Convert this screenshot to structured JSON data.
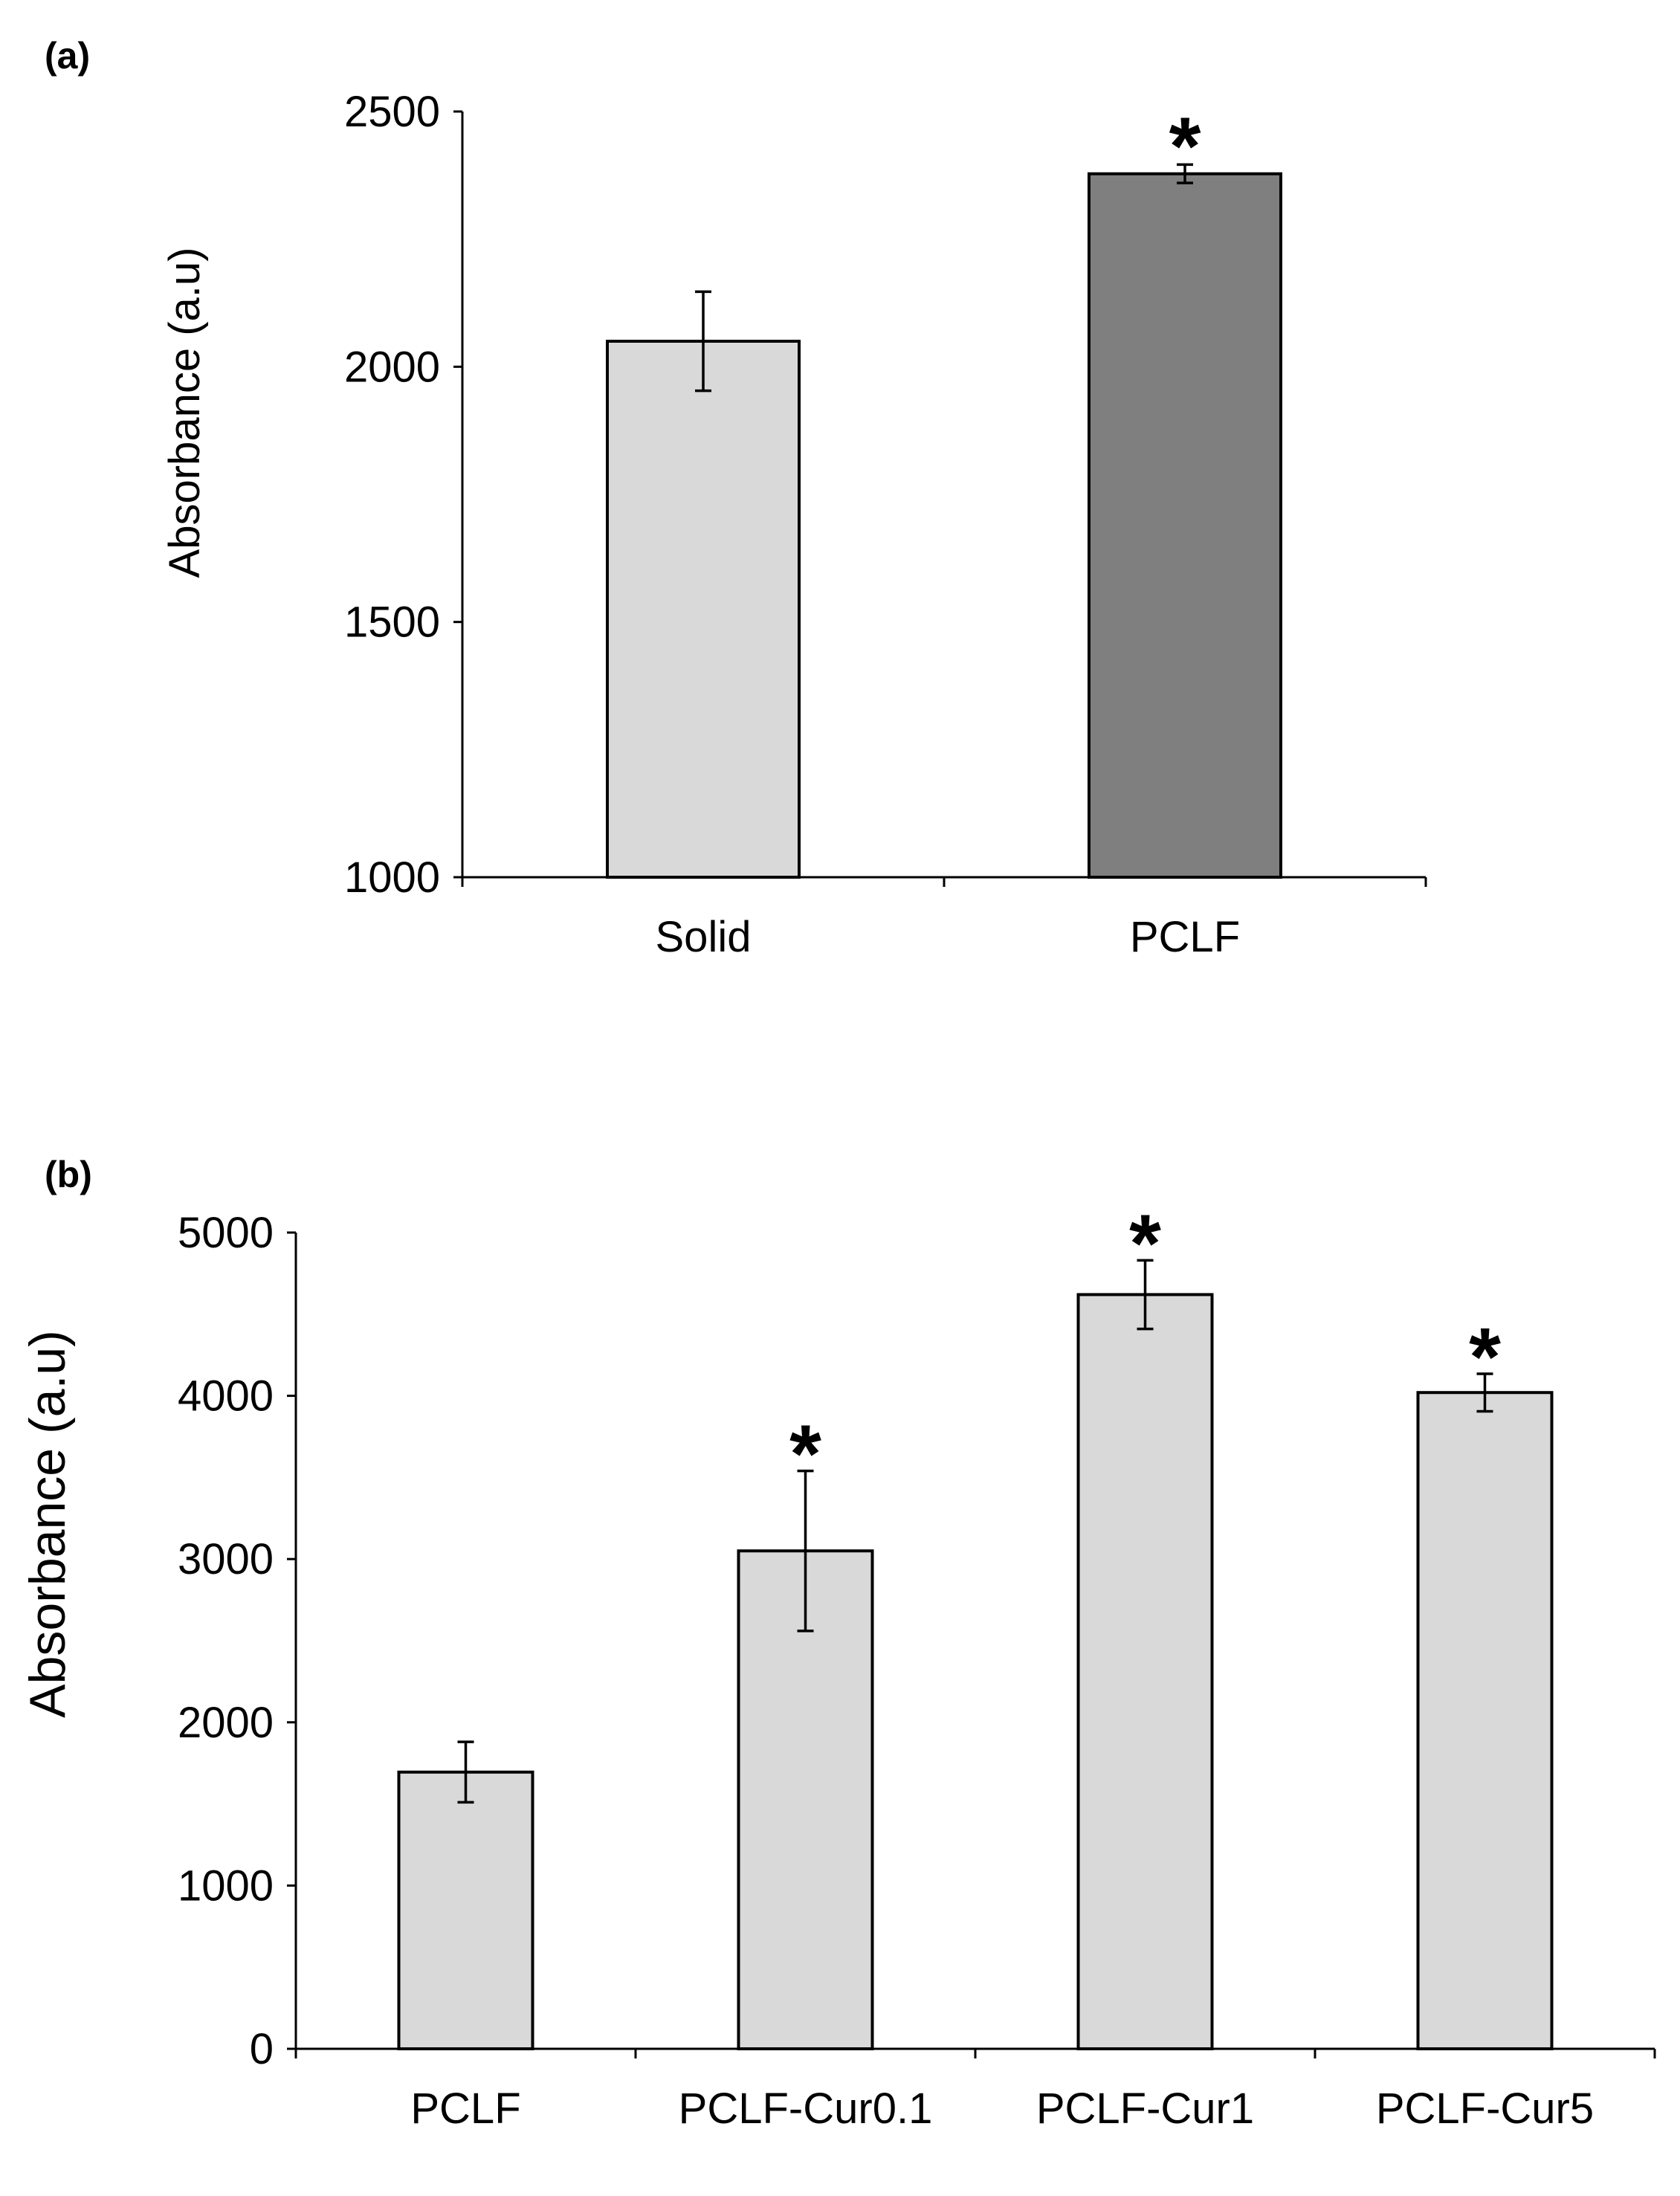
{
  "chart_data": [
    {
      "type": "bar",
      "panel_label": "(a)",
      "categories": [
        "Solid",
        "PCLF"
      ],
      "values": [
        2050,
        2378
      ],
      "errors": [
        97,
        18
      ],
      "significance": [
        "",
        "*"
      ],
      "colors": [
        "#d9d9d9",
        "#7f7f7f"
      ],
      "ylabel": "Absorbance (a.u)",
      "xlabel": "",
      "ylim": [
        1000,
        2500
      ],
      "yticks": [
        "1000",
        "1500",
        "2000",
        "2500"
      ],
      "grid": false
    },
    {
      "type": "bar",
      "panel_label": "(b)",
      "categories": [
        "PCLF",
        "PCLF-Cur0.1",
        "PCLF-Cur1",
        "PCLF-Cur5"
      ],
      "values": [
        1695,
        3050,
        4620,
        4020
      ],
      "errors": [
        185,
        490,
        210,
        115
      ],
      "significance": [
        "",
        "*",
        "*",
        "*"
      ],
      "colors": [
        "#d9d9d9",
        "#d9d9d9",
        "#d9d9d9",
        "#d9d9d9"
      ],
      "ylabel": "Absorbance (a.u)",
      "xlabel": "",
      "ylim": [
        0,
        5000
      ],
      "yticks": [
        "0",
        "1000",
        "2000",
        "3000",
        "4000",
        "5000"
      ],
      "grid": false
    }
  ]
}
